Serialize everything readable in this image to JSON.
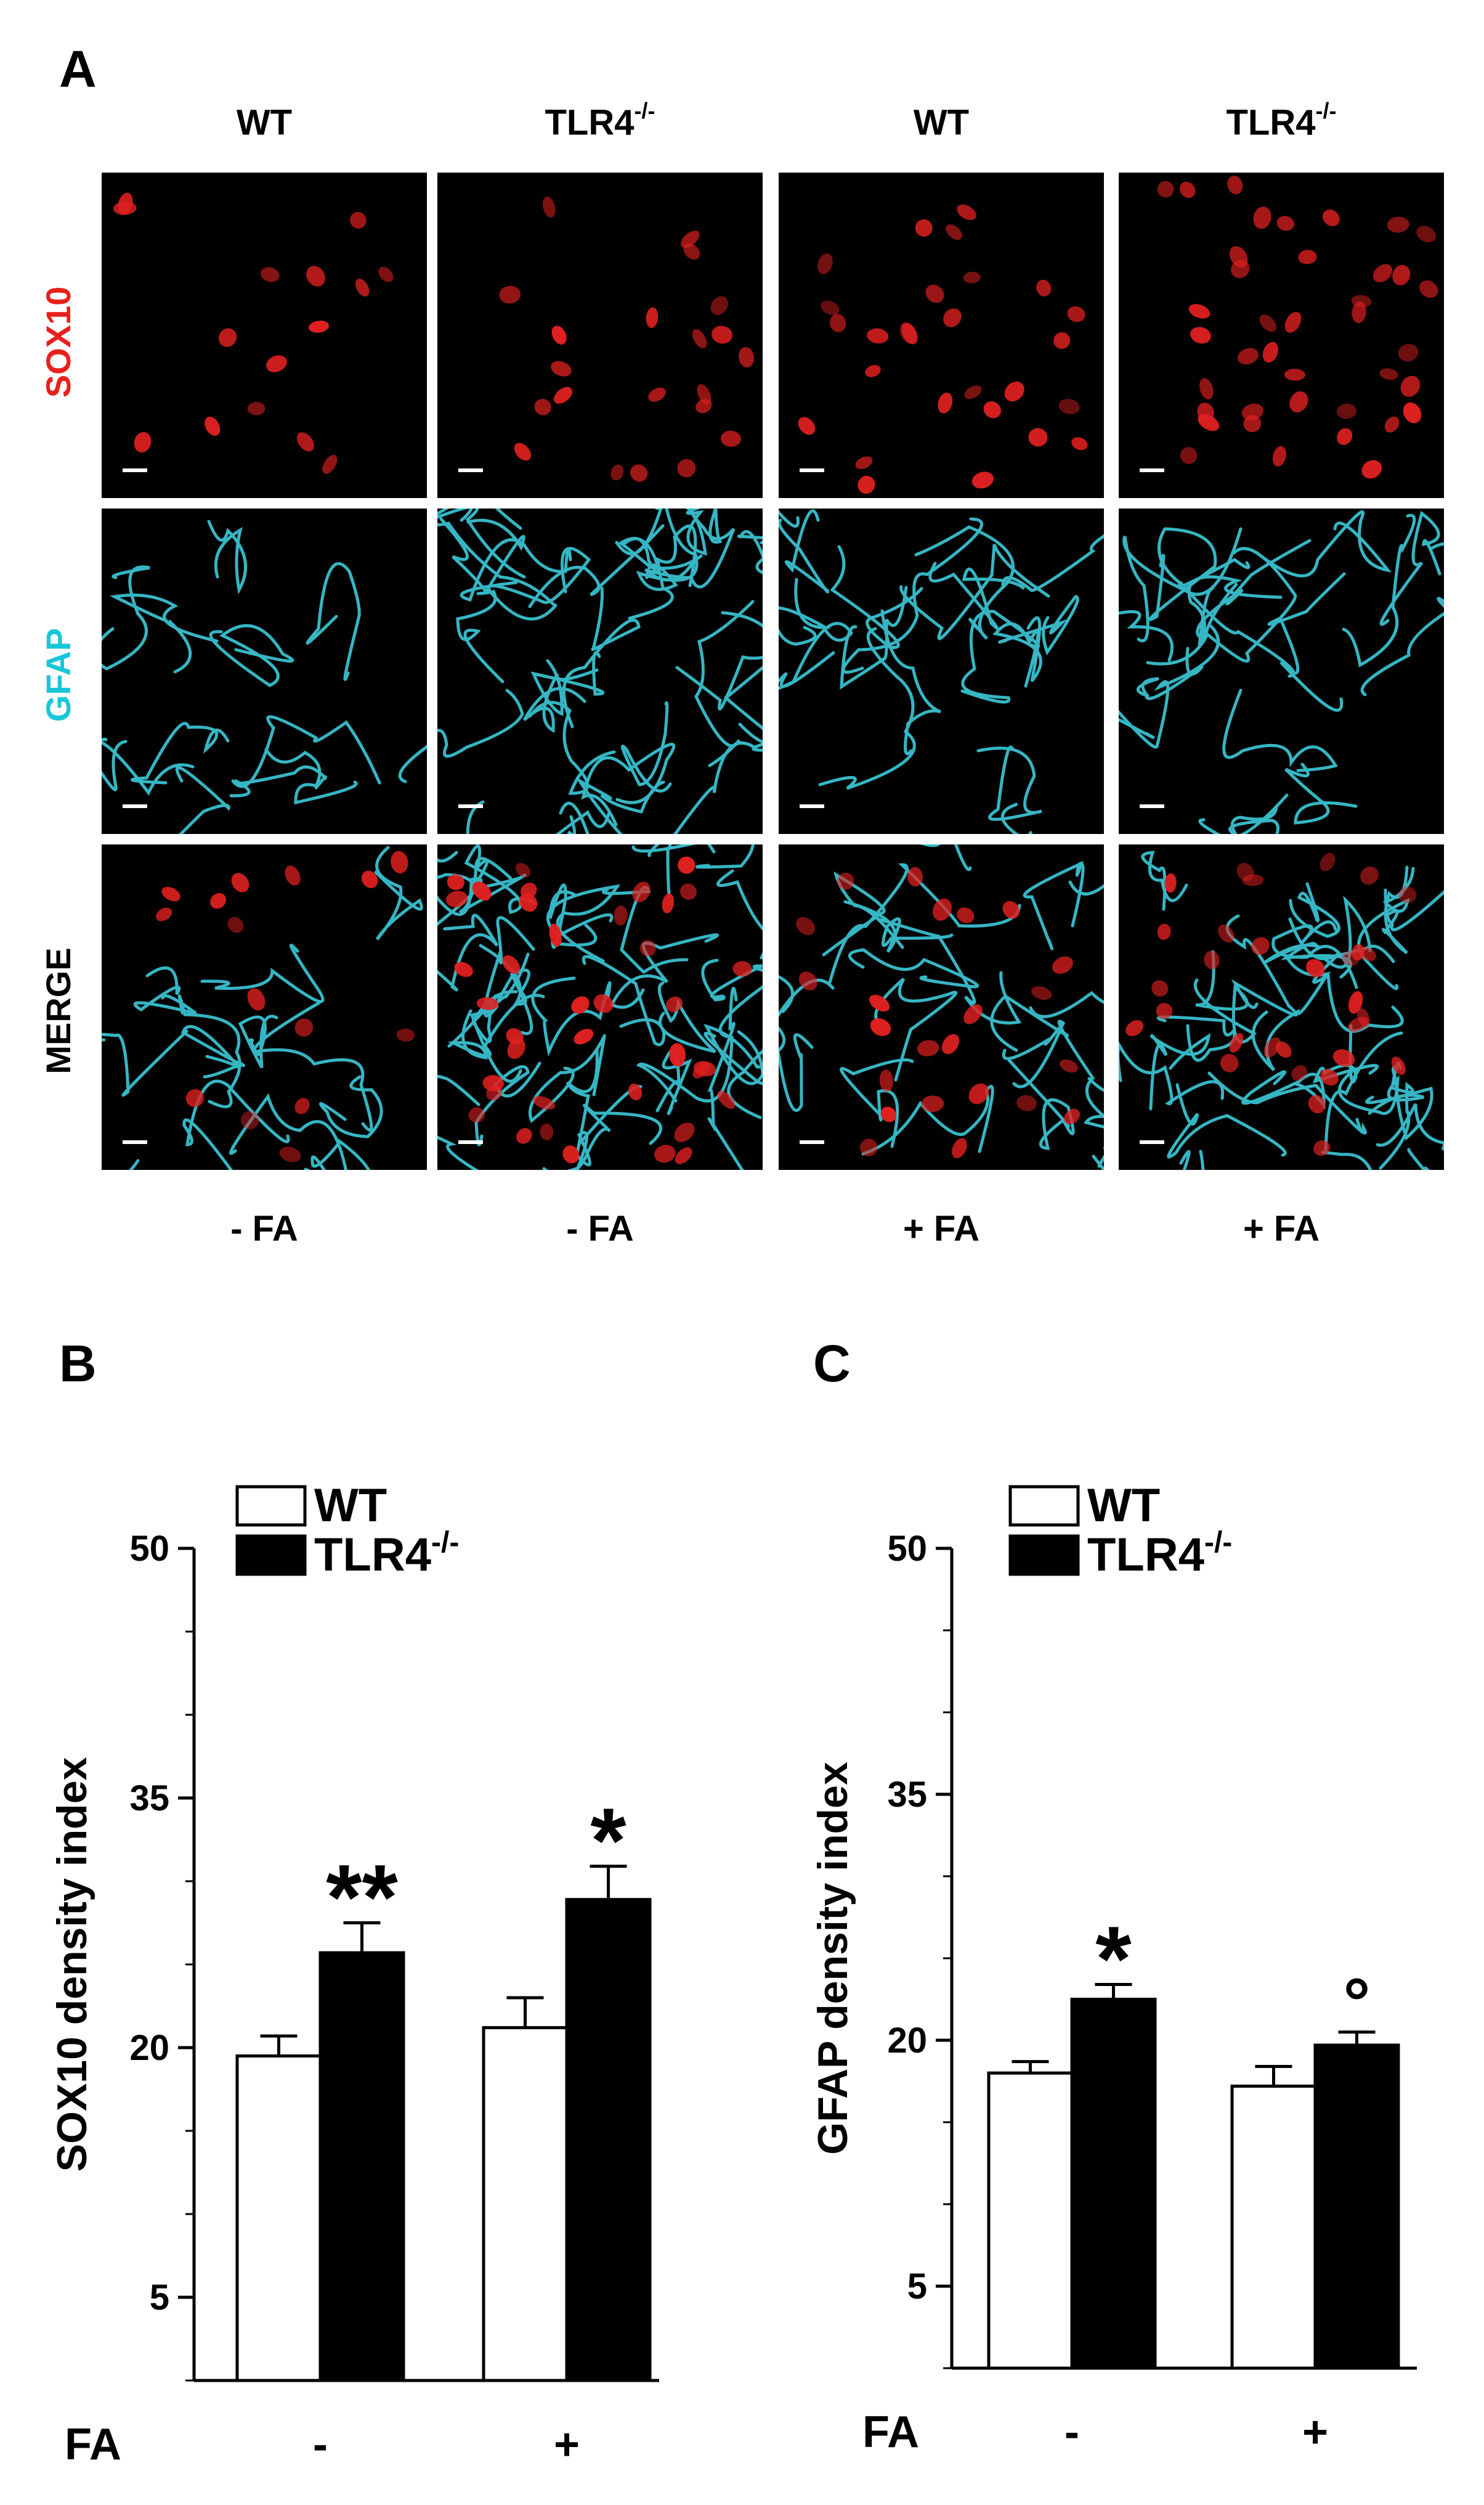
{
  "panel_a": {
    "letter": "A",
    "columns": [
      {
        "genotype": "WT",
        "sup": "",
        "treatment": "- FA"
      },
      {
        "genotype": "TLR4",
        "sup": "-/-",
        "treatment": "- FA"
      },
      {
        "genotype": "WT",
        "sup": "",
        "treatment": "+ FA"
      },
      {
        "genotype": "TLR4",
        "sup": "-/-",
        "treatment": "+ FA"
      }
    ],
    "rows": [
      {
        "label": "SOX10",
        "color": "#e8201c"
      },
      {
        "label": "GFAP",
        "color": "#19c6d8"
      },
      {
        "label": "MERGE",
        "color": "#000000"
      }
    ]
  },
  "colors": {
    "sox10_red": "#e02020",
    "gfap_cyan": "#3fd6e6"
  },
  "panel_b": {
    "letter": "B",
    "chart_data": {
      "type": "bar",
      "ylabel": "SOX10 density index",
      "xlabel": "FA",
      "categories": [
        "-",
        "+"
      ],
      "yticks": [
        5,
        20,
        35,
        50
      ],
      "ylim": [
        0,
        50
      ],
      "legend": "top-left",
      "series": [
        {
          "name": "WT",
          "fill": "#ffffff",
          "values": [
            19.5,
            21.2
          ],
          "errors": [
            1.2,
            1.8
          ],
          "sig": [
            "",
            ""
          ]
        },
        {
          "name": "TLR4",
          "name_sup": "-/-",
          "fill": "#000000",
          "values": [
            25.7,
            28.9
          ],
          "errors": [
            1.8,
            2.0
          ],
          "sig": [
            "**",
            "*"
          ]
        }
      ]
    }
  },
  "panel_c": {
    "letter": "C",
    "chart_data": {
      "type": "bar",
      "ylabel": "GFAP density index",
      "xlabel": "FA",
      "categories": [
        "-",
        "+"
      ],
      "yticks": [
        5,
        20,
        35,
        50
      ],
      "ylim": [
        0,
        50
      ],
      "legend": "top-left",
      "series": [
        {
          "name": "WT",
          "fill": "#ffffff",
          "values": [
            18.0,
            17.2
          ],
          "errors": [
            0.7,
            1.2
          ],
          "sig": [
            "",
            ""
          ]
        },
        {
          "name": "TLR4",
          "name_sup": "-/-",
          "fill": "#000000",
          "values": [
            22.5,
            19.7
          ],
          "errors": [
            0.9,
            0.8
          ],
          "sig": [
            "*",
            "°"
          ]
        }
      ]
    }
  }
}
